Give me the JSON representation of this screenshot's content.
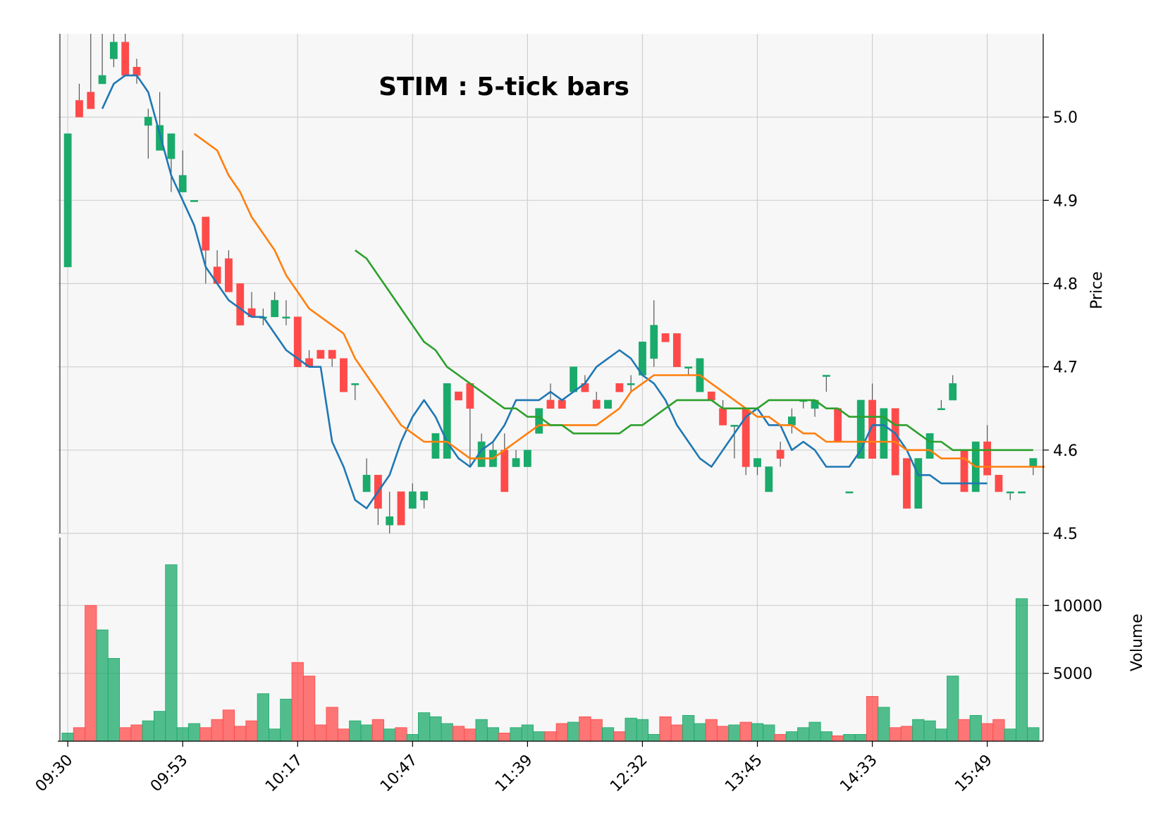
{
  "chart_data": {
    "type": "candlestick",
    "title": "STIM : 5-tick bars",
    "price_label": "Price",
    "volume_label": "Volume",
    "price_ylim": [
      4.5,
      5.1
    ],
    "volume_ylim": [
      0,
      15000
    ],
    "price_ticks": [
      "4.5",
      "4.6",
      "4.7",
      "4.8",
      "4.9",
      "5.0"
    ],
    "volume_ticks": [
      "5000",
      "10000"
    ],
    "x_ticks": [
      {
        "index": 0,
        "label": "09:30"
      },
      {
        "index": 10,
        "label": "09:53"
      },
      {
        "index": 20,
        "label": "10:17"
      },
      {
        "index": 30,
        "label": "10:47"
      },
      {
        "index": 40,
        "label": "11:39"
      },
      {
        "index": 50,
        "label": "12:32"
      },
      {
        "index": 60,
        "label": "13:45"
      },
      {
        "index": 70,
        "label": "14:33"
      },
      {
        "index": 80,
        "label": "15:49"
      }
    ],
    "grid": true,
    "up_color": "#1aaa6a",
    "down_color": "#ff4a4a",
    "bar_count": 85,
    "candles": [
      [
        4.82,
        4.98,
        4.82,
        4.98,
        600
      ],
      [
        5.02,
        5.04,
        5.0,
        5.0,
        1000
      ],
      [
        5.03,
        5.1,
        5.01,
        5.01,
        10000
      ],
      [
        5.04,
        5.1,
        5.04,
        5.05,
        8200
      ],
      [
        5.07,
        5.1,
        5.06,
        5.09,
        6100
      ],
      [
        5.09,
        5.1,
        5.05,
        5.05,
        1000
      ],
      [
        5.06,
        5.07,
        5.04,
        5.05,
        1200
      ],
      [
        4.99,
        5.01,
        4.95,
        5.0,
        1500
      ],
      [
        4.96,
        5.03,
        4.96,
        4.99,
        2200
      ],
      [
        4.95,
        4.98,
        4.91,
        4.98,
        13000
      ],
      [
        4.91,
        4.96,
        4.91,
        4.93,
        1000
      ],
      [
        4.9,
        4.9,
        4.9,
        4.9,
        1300
      ],
      [
        4.88,
        4.88,
        4.8,
        4.84,
        1000
      ],
      [
        4.82,
        4.84,
        4.8,
        4.8,
        1600
      ],
      [
        4.83,
        4.84,
        4.79,
        4.79,
        2300
      ],
      [
        4.8,
        4.8,
        4.75,
        4.75,
        1100
      ],
      [
        4.77,
        4.79,
        4.76,
        4.76,
        1500
      ],
      [
        4.76,
        4.77,
        4.75,
        4.76,
        3500
      ],
      [
        4.76,
        4.79,
        4.76,
        4.78,
        900
      ],
      [
        4.76,
        4.78,
        4.75,
        4.76,
        3100
      ],
      [
        4.76,
        4.76,
        4.7,
        4.7,
        5800
      ],
      [
        4.71,
        4.72,
        4.7,
        4.7,
        4800
      ],
      [
        4.72,
        4.72,
        4.71,
        4.71,
        1200
      ],
      [
        4.72,
        4.72,
        4.7,
        4.71,
        2500
      ],
      [
        4.71,
        4.71,
        4.67,
        4.67,
        900
      ],
      [
        4.68,
        4.68,
        4.66,
        4.68,
        1500
      ],
      [
        4.55,
        4.59,
        4.55,
        4.57,
        1200
      ],
      [
        4.57,
        4.57,
        4.51,
        4.53,
        1600
      ],
      [
        4.51,
        4.55,
        4.5,
        4.52,
        900
      ],
      [
        4.55,
        4.55,
        4.51,
        4.51,
        1000
      ],
      [
        4.53,
        4.56,
        4.53,
        4.55,
        500
      ],
      [
        4.54,
        4.55,
        4.53,
        4.55,
        2100
      ],
      [
        4.59,
        4.62,
        4.59,
        4.62,
        1800
      ],
      [
        4.59,
        4.68,
        4.59,
        4.68,
        1300
      ],
      [
        4.67,
        4.67,
        4.66,
        4.66,
        1100
      ],
      [
        4.68,
        4.68,
        4.58,
        4.65,
        900
      ],
      [
        4.58,
        4.62,
        4.58,
        4.61,
        1600
      ],
      [
        4.58,
        4.61,
        4.58,
        4.6,
        1000
      ],
      [
        4.6,
        4.62,
        4.55,
        4.55,
        600
      ],
      [
        4.58,
        4.6,
        4.58,
        4.59,
        1000
      ],
      [
        4.58,
        4.6,
        4.58,
        4.6,
        1200
      ],
      [
        4.62,
        4.65,
        4.62,
        4.65,
        700
      ],
      [
        4.66,
        4.68,
        4.65,
        4.65,
        700
      ],
      [
        4.66,
        4.66,
        4.65,
        4.65,
        1300
      ],
      [
        4.67,
        4.7,
        4.67,
        4.7,
        1400
      ],
      [
        4.68,
        4.69,
        4.67,
        4.67,
        1800
      ],
      [
        4.66,
        4.67,
        4.65,
        4.65,
        1600
      ],
      [
        4.65,
        4.66,
        4.65,
        4.66,
        1000
      ],
      [
        4.68,
        4.68,
        4.67,
        4.67,
        700
      ],
      [
        4.68,
        4.69,
        4.67,
        4.68,
        1700
      ],
      [
        4.69,
        4.73,
        4.69,
        4.73,
        1600
      ],
      [
        4.71,
        4.78,
        4.7,
        4.75,
        500
      ],
      [
        4.74,
        4.74,
        4.73,
        4.73,
        1800
      ],
      [
        4.74,
        4.74,
        4.7,
        4.7,
        1200
      ],
      [
        4.7,
        4.7,
        4.69,
        4.7,
        1900
      ],
      [
        4.67,
        4.71,
        4.67,
        4.71,
        1300
      ],
      [
        4.67,
        4.67,
        4.66,
        4.66,
        1600
      ],
      [
        4.65,
        4.66,
        4.63,
        4.63,
        1100
      ],
      [
        4.63,
        4.63,
        4.59,
        4.63,
        1200
      ],
      [
        4.65,
        4.65,
        4.57,
        4.58,
        1400
      ],
      [
        4.58,
        4.59,
        4.57,
        4.59,
        1300
      ],
      [
        4.55,
        4.58,
        4.55,
        4.58,
        1200
      ],
      [
        4.6,
        4.61,
        4.58,
        4.59,
        500
      ],
      [
        4.63,
        4.65,
        4.62,
        4.64,
        700
      ],
      [
        4.66,
        4.66,
        4.65,
        4.66,
        1000
      ],
      [
        4.65,
        4.66,
        4.64,
        4.66,
        1400
      ],
      [
        4.69,
        4.69,
        4.67,
        4.69,
        700
      ],
      [
        4.65,
        4.65,
        4.61,
        4.61,
        400
      ],
      [
        4.55,
        4.55,
        4.55,
        4.55,
        500
      ],
      [
        4.59,
        4.66,
        4.59,
        4.66,
        500
      ],
      [
        4.66,
        4.68,
        4.59,
        4.59,
        3300
      ],
      [
        4.59,
        4.65,
        4.59,
        4.65,
        2500
      ],
      [
        4.65,
        4.65,
        4.57,
        4.57,
        1000
      ],
      [
        4.59,
        4.59,
        4.53,
        4.53,
        1100
      ],
      [
        4.53,
        4.59,
        4.53,
        4.59,
        1600
      ],
      [
        4.59,
        4.62,
        4.59,
        4.62,
        1500
      ],
      [
        4.65,
        4.66,
        4.65,
        4.65,
        900
      ],
      [
        4.66,
        4.69,
        4.66,
        4.68,
        4800
      ],
      [
        4.6,
        4.6,
        4.55,
        4.55,
        1600
      ],
      [
        4.55,
        4.61,
        4.55,
        4.61,
        1900
      ],
      [
        4.61,
        4.63,
        4.57,
        4.57,
        1300
      ],
      [
        4.57,
        4.57,
        4.55,
        4.55,
        1600
      ],
      [
        4.55,
        4.55,
        4.54,
        4.55,
        900
      ],
      [
        4.55,
        4.55,
        4.55,
        4.55,
        10500
      ],
      [
        4.58,
        4.59,
        4.57,
        4.59,
        1000
      ]
    ],
    "series": [
      {
        "name": "",
        "color": "#1f77b4",
        "start": 3,
        "values": [
          5.01,
          5.04,
          5.05,
          5.05,
          5.03,
          4.98,
          4.93,
          4.9,
          4.87,
          4.82,
          4.8,
          4.78,
          4.77,
          4.76,
          4.76,
          4.74,
          4.72,
          4.71,
          4.7,
          4.7,
          4.61,
          4.58,
          4.54,
          4.53,
          4.55,
          4.57,
          4.61,
          4.64,
          4.66,
          4.64,
          4.61,
          4.59,
          4.58,
          4.6,
          4.61,
          4.63,
          4.66,
          4.66,
          4.66,
          4.67,
          4.66,
          4.67,
          4.68,
          4.7,
          4.71,
          4.72,
          4.71,
          4.69,
          4.68,
          4.66,
          4.63,
          4.61,
          4.59,
          4.58,
          4.6,
          4.62,
          4.64,
          4.65,
          4.63,
          4.63,
          4.6,
          4.61,
          4.6,
          4.58,
          4.58,
          4.58,
          4.6,
          4.63,
          4.63,
          4.62,
          4.6,
          4.57,
          4.57,
          4.56,
          4.56,
          4.56,
          4.56,
          4.56
        ]
      },
      {
        "name": "",
        "color": "#ff7f0e",
        "start": 11,
        "values": [
          4.98,
          4.97,
          4.96,
          4.93,
          4.91,
          4.88,
          4.86,
          4.84,
          4.81,
          4.79,
          4.77,
          4.76,
          4.75,
          4.74,
          4.71,
          4.69,
          4.67,
          4.65,
          4.63,
          4.62,
          4.61,
          4.61,
          4.61,
          4.6,
          4.59,
          4.59,
          4.59,
          4.6,
          4.61,
          4.62,
          4.63,
          4.63,
          4.63,
          4.63,
          4.63,
          4.63,
          4.64,
          4.65,
          4.67,
          4.68,
          4.69,
          4.69,
          4.69,
          4.69,
          4.69,
          4.68,
          4.67,
          4.66,
          4.65,
          4.64,
          4.64,
          4.63,
          4.63,
          4.62,
          4.62,
          4.61,
          4.61,
          4.61,
          4.61,
          4.61,
          4.61,
          4.61,
          4.6,
          4.6,
          4.6,
          4.59,
          4.59,
          4.59,
          4.58,
          4.58,
          4.58,
          4.58,
          4.58,
          4.58,
          4.58
        ]
      },
      {
        "name": "",
        "color": "#2ca02c",
        "start": 25,
        "values": [
          4.84,
          4.83,
          4.81,
          4.79,
          4.77,
          4.75,
          4.73,
          4.72,
          4.7,
          4.69,
          4.68,
          4.67,
          4.66,
          4.65,
          4.65,
          4.64,
          4.64,
          4.63,
          4.63,
          4.62,
          4.62,
          4.62,
          4.62,
          4.62,
          4.63,
          4.63,
          4.64,
          4.65,
          4.66,
          4.66,
          4.66,
          4.66,
          4.65,
          4.65,
          4.65,
          4.65,
          4.66,
          4.66,
          4.66,
          4.66,
          4.66,
          4.65,
          4.65,
          4.64,
          4.64,
          4.64,
          4.64,
          4.63,
          4.63,
          4.62,
          4.61,
          4.61,
          4.6,
          4.6,
          4.6,
          4.6,
          4.6,
          4.6,
          4.6,
          4.6
        ]
      }
    ]
  }
}
